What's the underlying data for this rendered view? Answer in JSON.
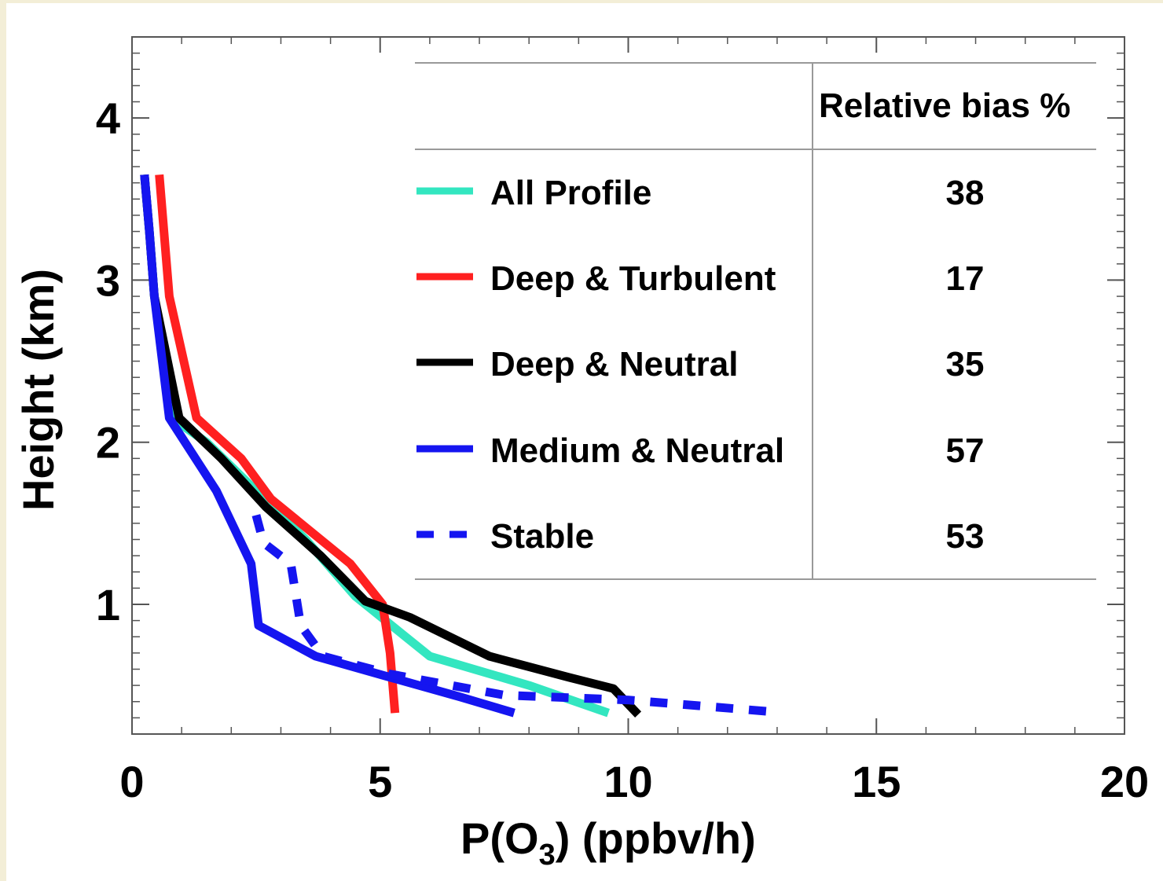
{
  "chart_data": {
    "type": "line",
    "title": "",
    "xlabel_parts": [
      "P(O",
      "3",
      ") (ppbv/h)"
    ],
    "ylabel": "Height (km)",
    "xlim": [
      0,
      20
    ],
    "ylim": [
      0.2,
      4.5
    ],
    "x_ticks": [
      0,
      5,
      10,
      15,
      20
    ],
    "y_ticks": [
      1,
      2,
      3,
      4
    ],
    "legend_placement": "top-right",
    "table_header": "Relative bias %",
    "series": [
      {
        "name": "All Profile",
        "color": "#33e6c0",
        "dash": "solid",
        "bias": "38",
        "points": [
          [
            0.25,
            3.65
          ],
          [
            0.35,
            3.3
          ],
          [
            0.45,
            2.9
          ],
          [
            0.8,
            2.15
          ],
          [
            1.5,
            2.0
          ],
          [
            2.5,
            1.7
          ],
          [
            3.5,
            1.4
          ],
          [
            4.5,
            1.05
          ],
          [
            6.0,
            0.68
          ],
          [
            8.0,
            0.5
          ],
          [
            9.6,
            0.33
          ]
        ]
      },
      {
        "name": "Deep & Turbulent",
        "color": "#ff2020",
        "dash": "solid",
        "bias": "17",
        "points": [
          [
            0.55,
            3.65
          ],
          [
            0.75,
            2.9
          ],
          [
            1.3,
            2.15
          ],
          [
            2.2,
            1.9
          ],
          [
            2.8,
            1.65
          ],
          [
            3.8,
            1.4
          ],
          [
            4.4,
            1.25
          ],
          [
            5.05,
            1.0
          ],
          [
            5.2,
            0.7
          ],
          [
            5.3,
            0.33
          ]
        ]
      },
      {
        "name": "Deep & Neutral",
        "color": "#000000",
        "dash": "solid",
        "bias": "35",
        "points": [
          [
            0.25,
            3.65
          ],
          [
            0.35,
            3.3
          ],
          [
            0.45,
            2.9
          ],
          [
            0.95,
            2.15
          ],
          [
            1.8,
            1.9
          ],
          [
            2.7,
            1.6
          ],
          [
            3.8,
            1.3
          ],
          [
            4.7,
            1.02
          ],
          [
            5.6,
            0.92
          ],
          [
            7.2,
            0.68
          ],
          [
            8.8,
            0.55
          ],
          [
            9.7,
            0.48
          ],
          [
            10.2,
            0.32
          ]
        ]
      },
      {
        "name": "Medium & Neutral",
        "color": "#1515f0",
        "dash": "solid",
        "bias": "57",
        "points": [
          [
            0.25,
            3.65
          ],
          [
            0.35,
            3.3
          ],
          [
            0.45,
            2.9
          ],
          [
            0.75,
            2.15
          ],
          [
            1.7,
            1.7
          ],
          [
            2.4,
            1.25
          ],
          [
            2.55,
            0.87
          ],
          [
            3.7,
            0.68
          ],
          [
            5.2,
            0.55
          ],
          [
            6.6,
            0.43
          ],
          [
            7.7,
            0.33
          ]
        ]
      },
      {
        "name": "Stable",
        "color": "#1515f0",
        "dash": "dashed",
        "bias": "53",
        "points": [
          [
            2.5,
            1.55
          ],
          [
            2.65,
            1.38
          ],
          [
            3.2,
            1.25
          ],
          [
            3.4,
            0.87
          ],
          [
            3.85,
            0.68
          ],
          [
            5.2,
            0.57
          ],
          [
            7.5,
            0.44
          ],
          [
            10.0,
            0.41
          ],
          [
            12.8,
            0.34
          ]
        ]
      }
    ]
  }
}
